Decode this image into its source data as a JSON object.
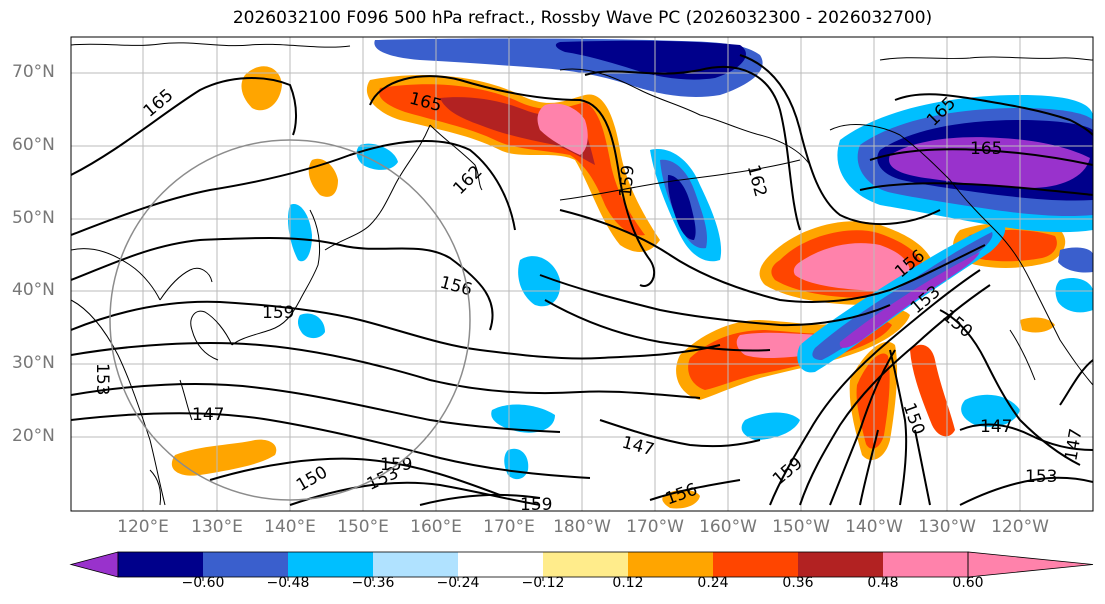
{
  "title": "2026032100 F096 500 hPa refract., Rossby Wave PC (2026032300 - 2026032700)",
  "lat_labels": [
    "70°N",
    "60°N",
    "50°N",
    "40°N",
    "30°N",
    "20°N"
  ],
  "lon_labels": [
    "120°E",
    "130°E",
    "140°E",
    "150°E",
    "160°E",
    "170°E",
    "180°W",
    "170°W",
    "160°W",
    "150°W",
    "140°W",
    "130°W",
    "120°W"
  ],
  "colorbar": {
    "ticks": [
      "−0.60",
      "−0.48",
      "−0.36",
      "−0.24",
      "−0.12",
      "0.12",
      "0.24",
      "0.36",
      "0.48",
      "0.60"
    ],
    "colors": [
      "#9932cc",
      "#00008b",
      "#3a5fcd",
      "#00bfff",
      "#b0e2ff",
      "#ffffff",
      "#ffec8b",
      "#ffa500",
      "#ff4500",
      "#b22222",
      "#ff82ab"
    ]
  },
  "contour_labels": [
    "165",
    "165",
    "165",
    "165",
    "162",
    "162",
    "159",
    "159",
    "159",
    "159",
    "159",
    "156",
    "156",
    "156",
    "153",
    "153",
    "153",
    "150",
    "150",
    "150",
    "147",
    "147",
    "147",
    "147",
    "153"
  ]
}
